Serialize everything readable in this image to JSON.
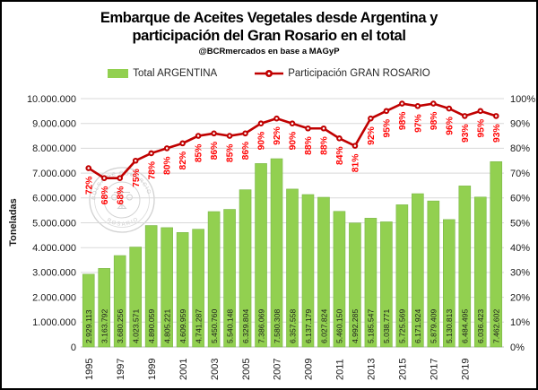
{
  "header": {
    "title_line1": "Embarque de Aceites Vegetales desde Argentina y",
    "title_line2": "participación del Gran Rosario en el total",
    "subtitle": "@BCRmercados en base a MAGyP"
  },
  "legend": {
    "bars_label": "Total ARGENTINA",
    "line_label": "Participación GRAN ROSARIO"
  },
  "watermark": {
    "top_text": "BOLSA DE COMERCIO",
    "bottom_text": "ROSARIO"
  },
  "colors": {
    "bar": "#92D050",
    "bar_border": "#7ab648",
    "line": "#C00000",
    "pct_label": "#FF0000",
    "grid": "#D9D9D9",
    "grid_axis": "#BFBFBF",
    "axis_text": "#1a1a1a",
    "bar_value_text": "#1c1c1c"
  },
  "chart_data": {
    "type": "bar",
    "title": "Embarque de Aceites Vegetales desde Argentina y participación del Gran Rosario en el total",
    "subtitle": "@BCRmercados en base a MAGyP",
    "xlabel": "",
    "categories": [
      1995,
      1996,
      1997,
      1998,
      1999,
      2000,
      2001,
      2002,
      2003,
      2004,
      2005,
      2006,
      2007,
      2008,
      2009,
      2010,
      2011,
      2012,
      2013,
      2014,
      2015,
      2016,
      2017,
      2018,
      2019,
      2020,
      2021
    ],
    "series": [
      {
        "name": "Total ARGENTINA",
        "type": "bar",
        "axis": "left",
        "values": [
          2929113,
          3163792,
          3680256,
          4023571,
          4890059,
          4805221,
          4609959,
          4741287,
          5450760,
          5540148,
          6329804,
          7386069,
          7580308,
          6357558,
          6137179,
          6027824,
          5460150,
          4992285,
          5185547,
          5038771,
          5725569,
          6171924,
          5879409,
          5130813,
          6484495,
          6036423,
          7462602
        ]
      },
      {
        "name": "Participación GRAN ROSARIO",
        "type": "line",
        "axis": "right",
        "values_pct": [
          72,
          68,
          68,
          75,
          78,
          80,
          82,
          85,
          86,
          85,
          86,
          90,
          92,
          90,
          88,
          88,
          84,
          81,
          92,
          95,
          98,
          97,
          98,
          96,
          93,
          95,
          93
        ]
      }
    ],
    "left_axis": {
      "label": "Toneladas",
      "min": 0,
      "max": 10000000,
      "step": 1000000
    },
    "right_axis": {
      "min": 0,
      "max": 100,
      "step": 10,
      "suffix": "%"
    },
    "x_ticks_shown": [
      1995,
      1997,
      1999,
      2001,
      2003,
      2005,
      2007,
      2009,
      2011,
      2013,
      2015,
      2017,
      2019
    ],
    "grid": true,
    "legend_position": "top"
  }
}
